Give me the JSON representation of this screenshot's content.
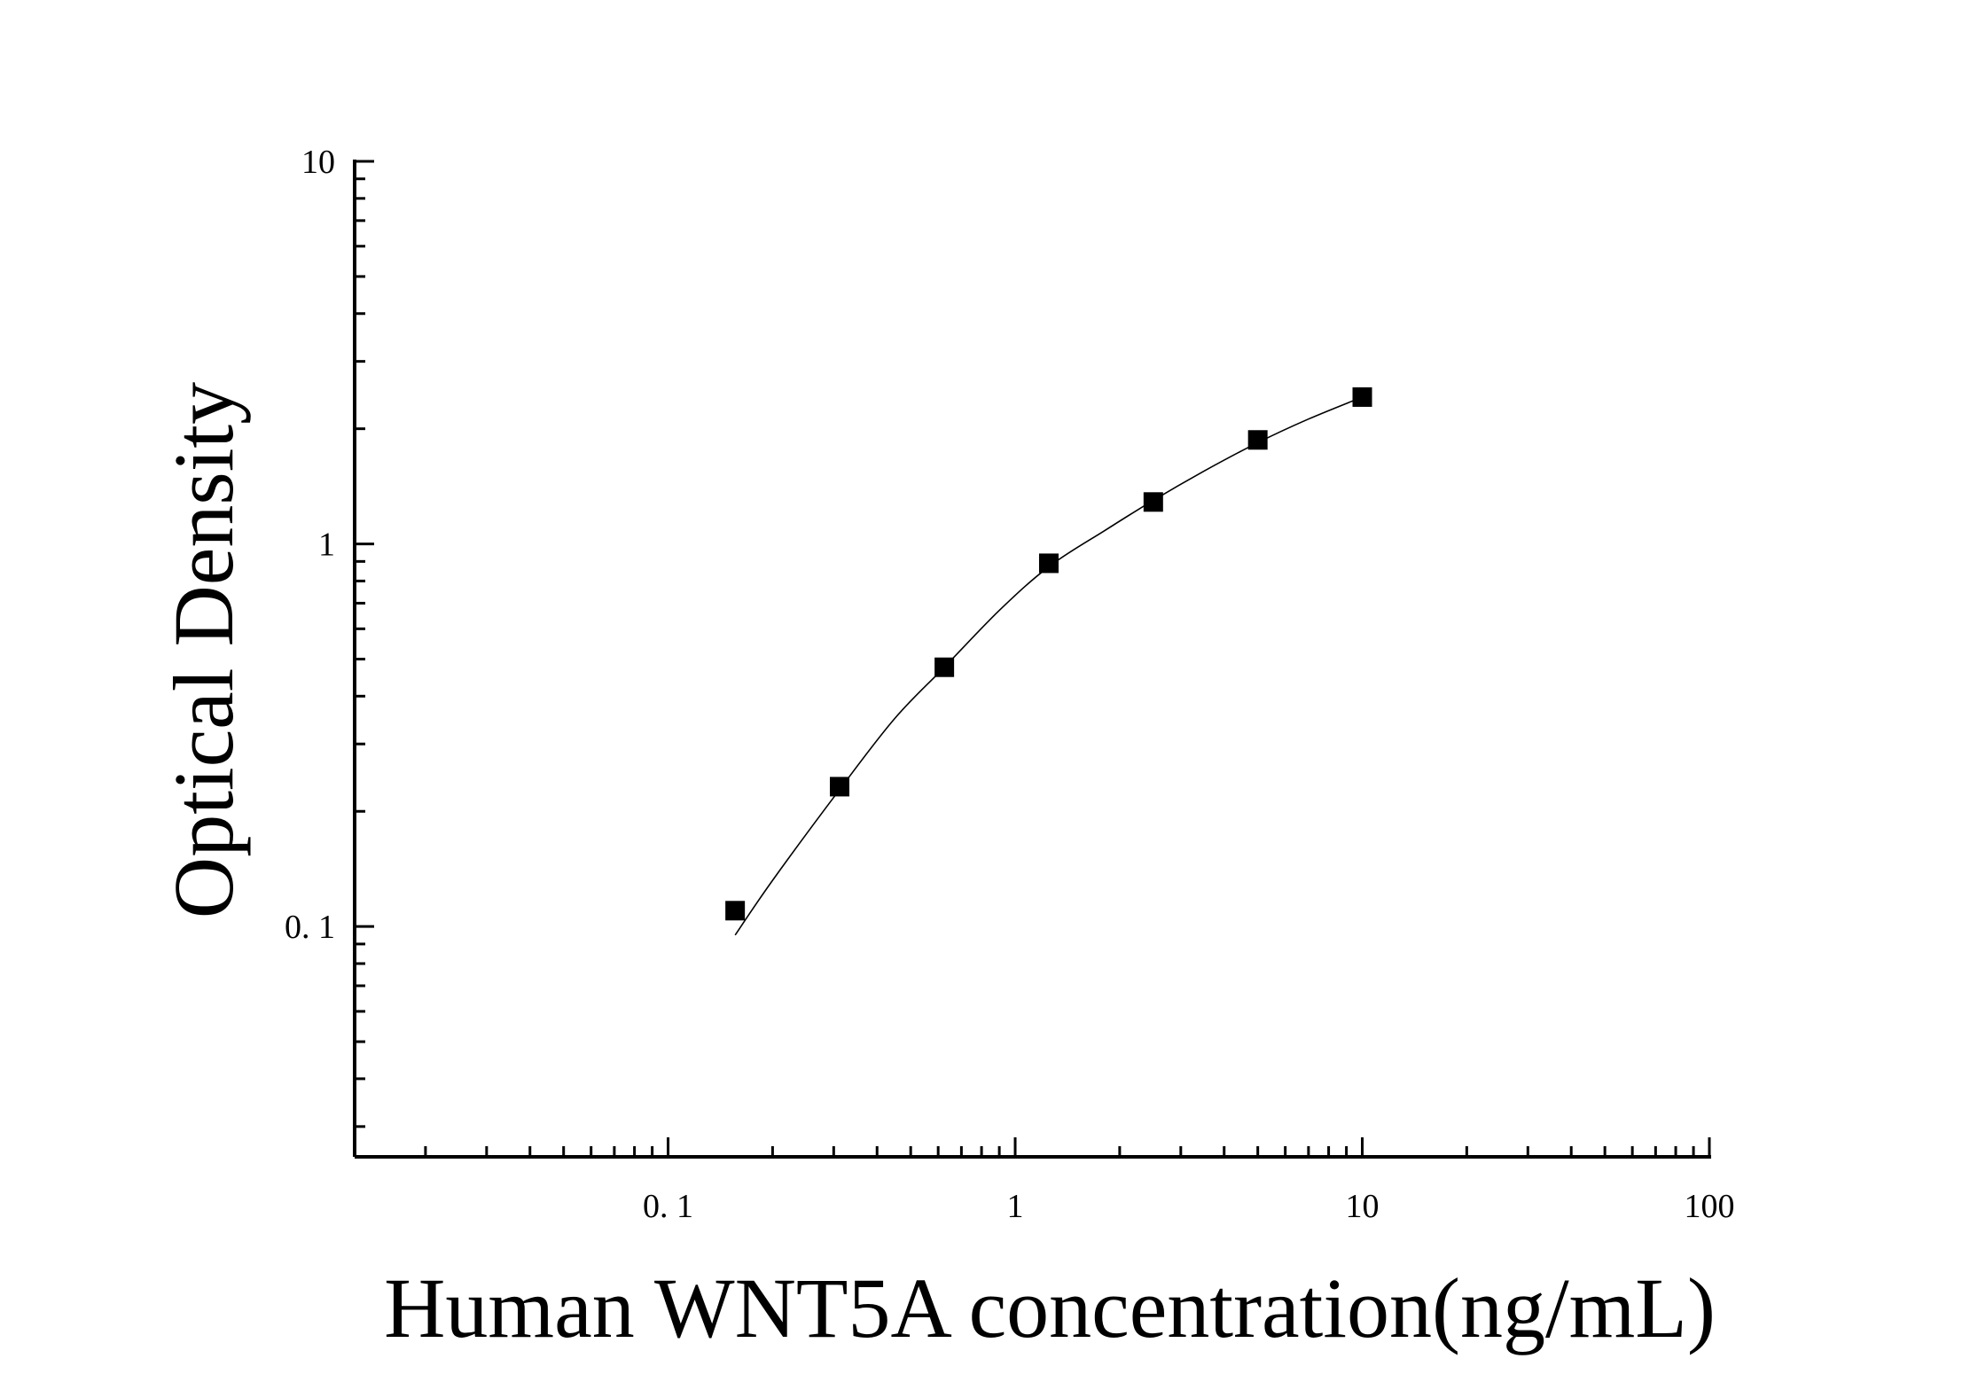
{
  "chart_data": {
    "type": "scatter",
    "title": "",
    "xlabel": "Human WNT5A concentration(ng/mL)",
    "ylabel": "Optical Density",
    "x_scale": "log",
    "y_scale": "log",
    "xlim": [
      0.0125,
      100
    ],
    "ylim": [
      0.025,
      10
    ],
    "x_ticks": [
      {
        "value": 0.1,
        "label": "0. 1"
      },
      {
        "value": 1,
        "label": "1"
      },
      {
        "value": 10,
        "label": "10"
      },
      {
        "value": 100,
        "label": "100"
      }
    ],
    "y_ticks": [
      {
        "value": 0.1,
        "label": "0. 1"
      },
      {
        "value": 1,
        "label": "1"
      },
      {
        "value": 10,
        "label": "10"
      }
    ],
    "grid": false,
    "legend": "none",
    "marker": "square",
    "color": "#000000",
    "series": [
      {
        "x": [
          0.156,
          0.312,
          0.625,
          1.25,
          2.5,
          5,
          10
        ],
        "y": [
          0.11,
          0.232,
          0.476,
          0.89,
          1.287,
          1.87,
          2.42
        ]
      }
    ],
    "fit_curve": {
      "x": [
        0.156,
        0.2,
        0.312,
        0.45,
        0.625,
        0.9,
        1.25,
        1.8,
        2.5,
        3.5,
        5,
        7,
        10
      ],
      "y": [
        0.095,
        0.132,
        0.228,
        0.35,
        0.476,
        0.67,
        0.872,
        1.08,
        1.3,
        1.55,
        1.84,
        2.12,
        2.42
      ]
    }
  }
}
